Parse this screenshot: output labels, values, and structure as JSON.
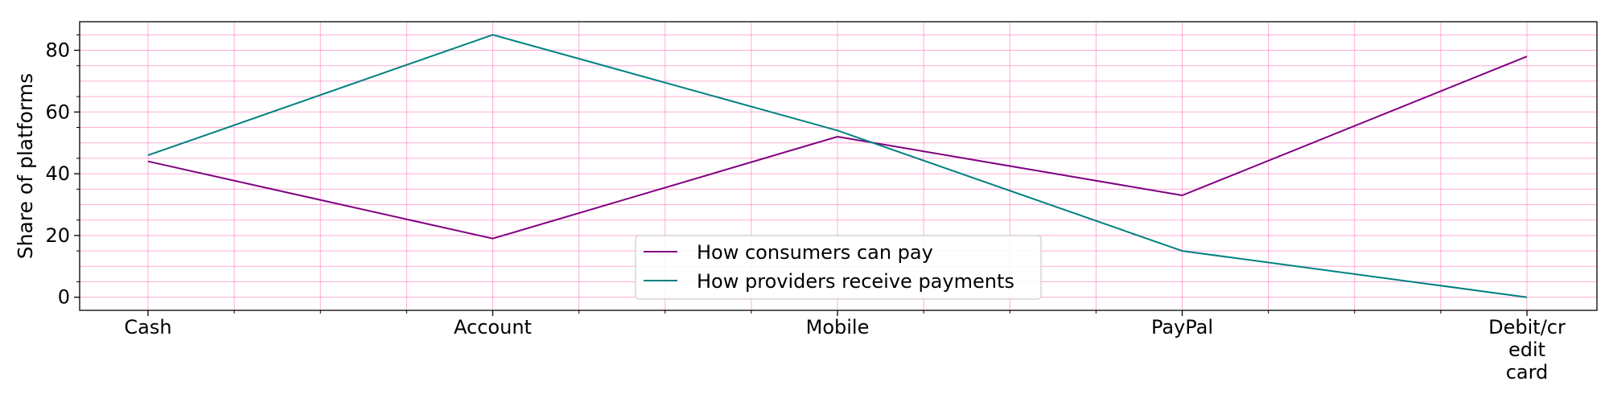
{
  "chart_data": {
    "type": "line",
    "categories": [
      "Cash",
      "Account",
      "Mobile",
      "PayPal",
      "Debit/credit card"
    ],
    "category_tick_lines": [
      [
        "Cash"
      ],
      [
        "Account"
      ],
      [
        "Mobile"
      ],
      [
        "PayPal"
      ],
      [
        "Debit/cr",
        "edit",
        "card"
      ]
    ],
    "series": [
      {
        "name": "How consumers can pay",
        "values": [
          44,
          19,
          52,
          33,
          78
        ],
        "color": "#800080"
      },
      {
        "name": "How providers receive payments",
        "values": [
          46,
          85,
          54,
          15,
          0
        ],
        "color": "#008080"
      }
    ],
    "title": "",
    "xlabel": "",
    "ylabel": "Share of platforms",
    "ylim": [
      -4.25,
      89.25
    ],
    "yticks": [
      0,
      20,
      40,
      60,
      80
    ],
    "grid": true,
    "grid_color": "#ff69b4",
    "legend_position": "lower center"
  }
}
